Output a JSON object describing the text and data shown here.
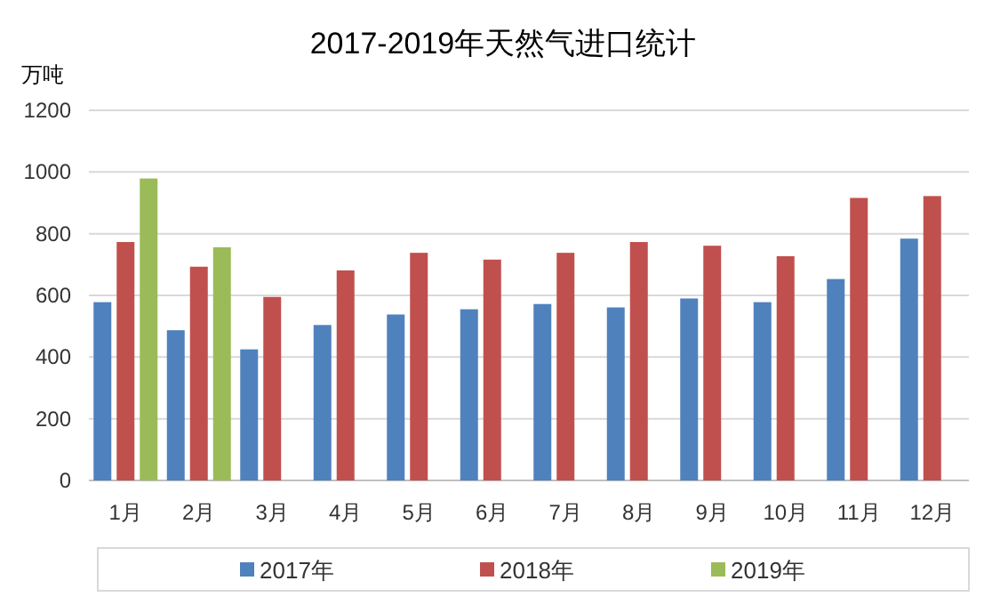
{
  "chart_data": {
    "type": "bar",
    "title": "2017-2019年天然气进口统计",
    "ylabel": "万吨",
    "categories": [
      "1月",
      "2月",
      "3月",
      "4月",
      "5月",
      "6月",
      "7月",
      "8月",
      "9月",
      "10月",
      "11月",
      "12月"
    ],
    "series": [
      {
        "name": "2017年",
        "color": "#4f81bd",
        "values": [
          578,
          487,
          425,
          504,
          538,
          555,
          572,
          561,
          590,
          578,
          653,
          784
        ]
      },
      {
        "name": "2018年",
        "color": "#c0504d",
        "values": [
          773,
          693,
          595,
          681,
          738,
          716,
          738,
          773,
          761,
          727,
          916,
          922
        ]
      },
      {
        "name": "2019年",
        "color": "#9bbb59",
        "values": [
          979,
          756,
          null,
          null,
          null,
          null,
          null,
          null,
          null,
          null,
          null,
          null
        ]
      }
    ],
    "ylim": [
      0,
      1200
    ],
    "yticks": [
      0,
      200,
      400,
      600,
      800,
      1000,
      1200
    ],
    "grid": "y",
    "legend": "bottom"
  }
}
